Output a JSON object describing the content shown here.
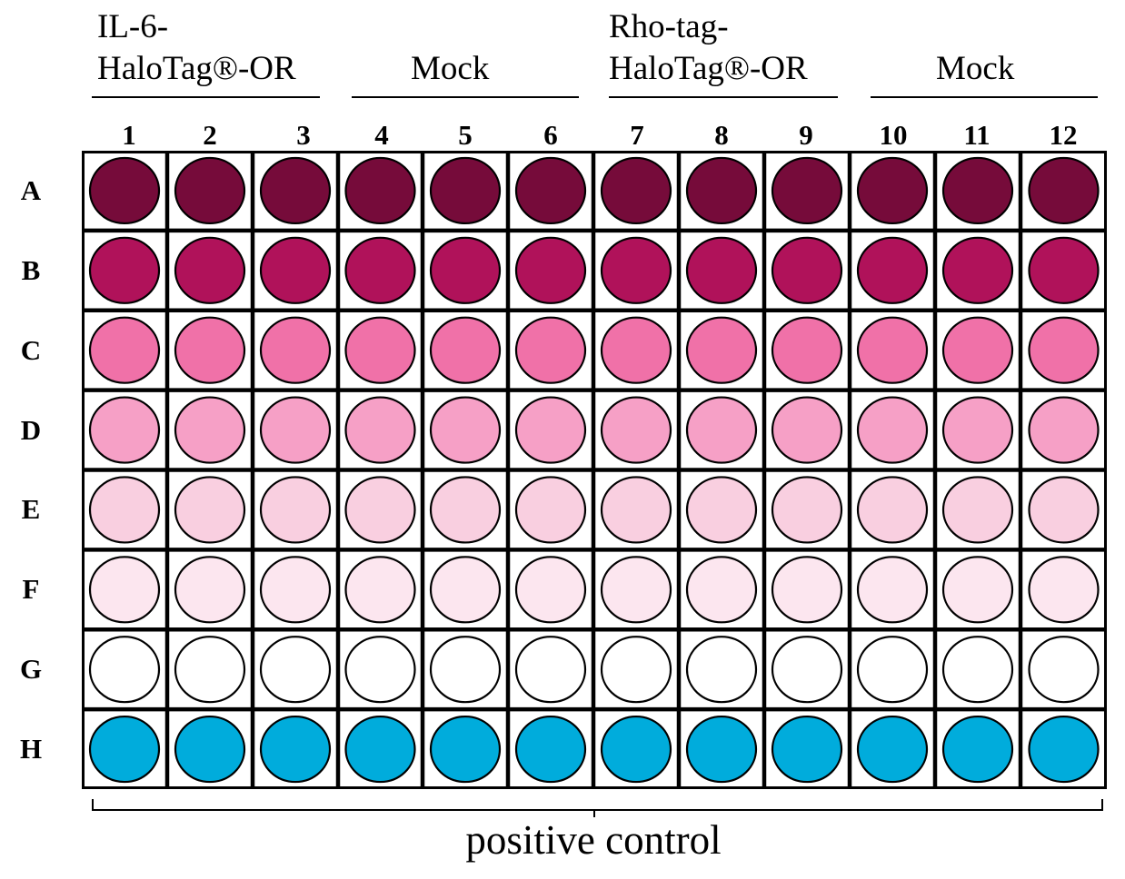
{
  "groups": [
    {
      "line1": "IL-6-",
      "line2": "HaloTag®-OR"
    },
    {
      "line1": "",
      "line2": "Mock"
    },
    {
      "line1": "Rho-tag-",
      "line2": "HaloTag®-OR"
    },
    {
      "line1": "",
      "line2": "Mock"
    }
  ],
  "columns": [
    "1",
    "2",
    "3",
    "4",
    "5",
    "6",
    "7",
    "8",
    "9",
    "10",
    "11",
    "12"
  ],
  "rows": [
    {
      "label": "A",
      "color": "#760b3a"
    },
    {
      "label": "B",
      "color": "#b0125a"
    },
    {
      "label": "C",
      "color": "#f071a8"
    },
    {
      "label": "D",
      "color": "#f6a0c6"
    },
    {
      "label": "E",
      "color": "#f9cfe0"
    },
    {
      "label": "F",
      "color": "#fce6ef"
    },
    {
      "label": "G",
      "color": "#ffffff"
    },
    {
      "label": "H",
      "color": "#00acdc"
    }
  ],
  "bottom_label": "positive control"
}
